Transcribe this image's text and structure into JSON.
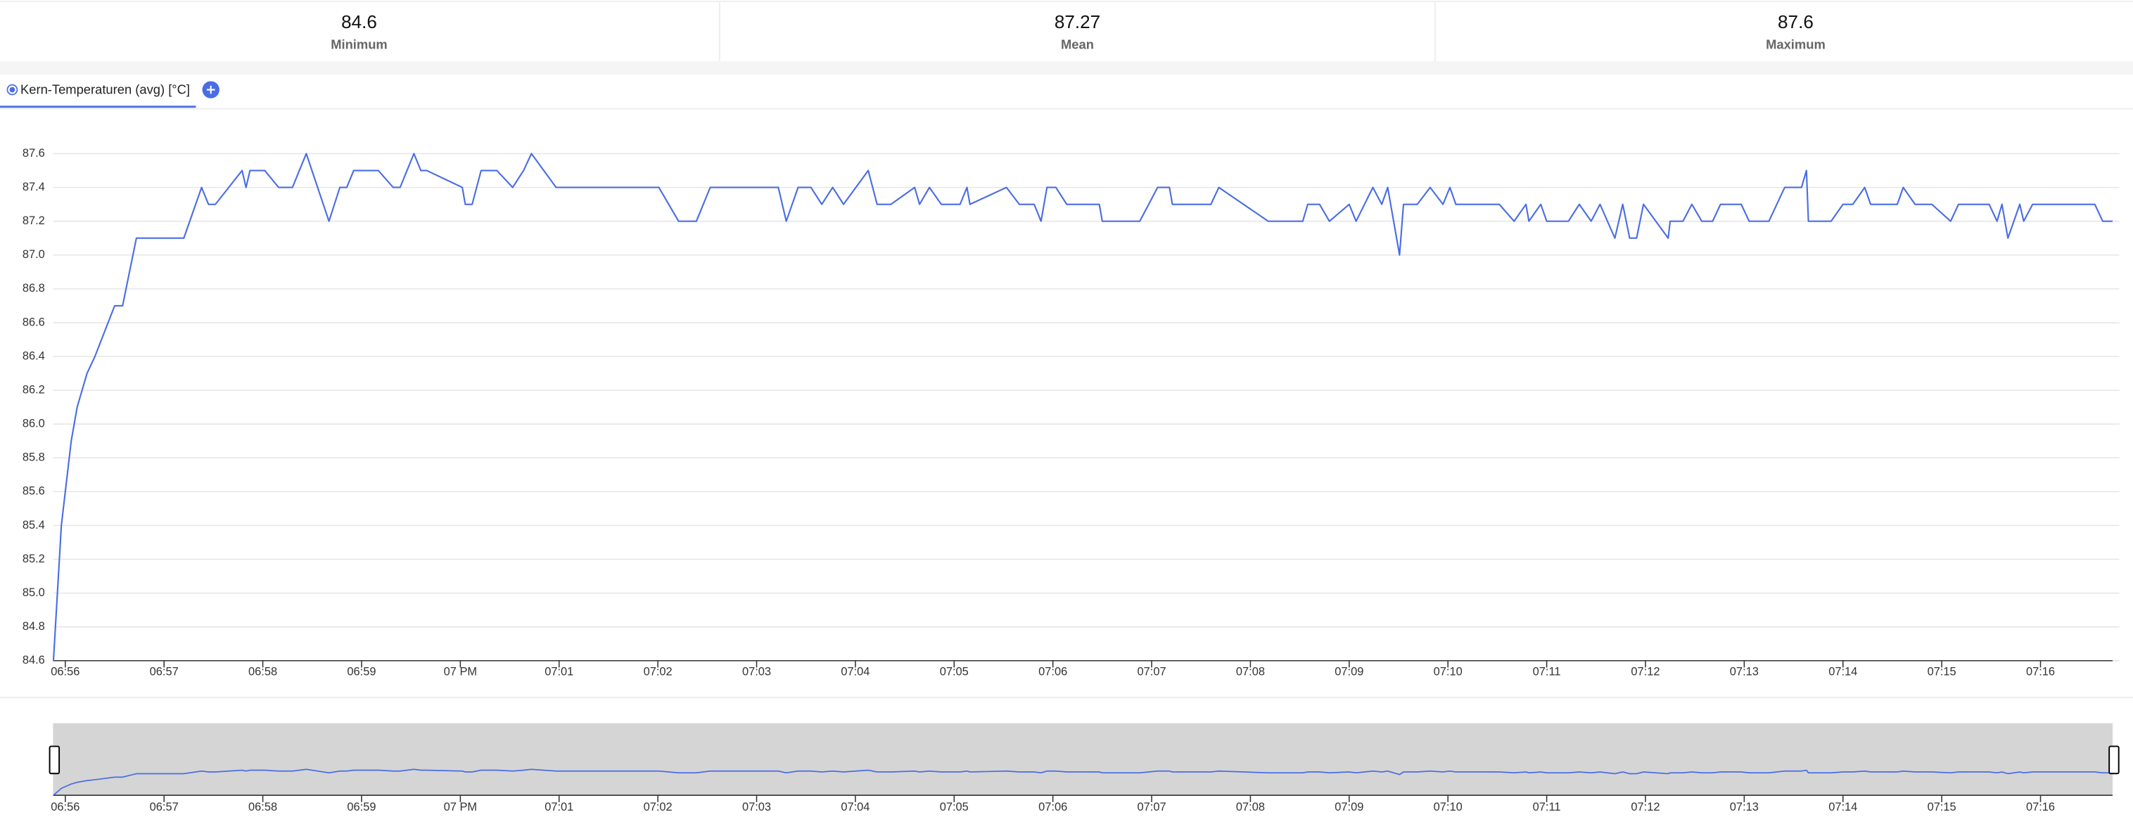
{
  "stats": [
    {
      "value": 84.6,
      "label": "Minimum"
    },
    {
      "value": 87.27,
      "label": "Mean"
    },
    {
      "value": 87.6,
      "label": "Maximum"
    }
  ],
  "chart_data": {
    "type": "line",
    "series": [
      {
        "name": "Kern-Temperaturen (avg) [°C]",
        "color": "#4a6de5",
        "x": [
          415.88,
          415.96,
          416.06,
          416.12,
          416.22,
          416.3,
          416.5,
          416.58,
          416.65,
          416.72,
          417.2,
          417.38,
          417.45,
          417.52,
          417.79,
          417.83,
          417.87,
          418.02,
          418.16,
          418.3,
          418.44,
          418.67,
          418.78,
          418.85,
          418.92,
          419.17,
          419.32,
          419.39,
          419.53,
          419.6,
          419.66,
          420.02,
          420.05,
          420.12,
          420.21,
          420.37,
          420.53,
          420.64,
          420.72,
          420.97,
          422.01,
          422.21,
          422.39,
          422.53,
          423.22,
          423.3,
          423.42,
          423.55,
          423.66,
          423.77,
          423.88,
          424.13,
          424.22,
          424.36,
          424.6,
          424.65,
          424.75,
          424.87,
          425.06,
          425.13,
          425.16,
          425.53,
          425.66,
          425.81,
          425.88,
          425.94,
          426.03,
          426.14,
          426.47,
          426.5,
          426.88,
          427.06,
          427.18,
          427.21,
          427.6,
          427.68,
          428.18,
          428.53,
          428.58,
          428.7,
          428.8,
          429.0,
          429.07,
          429.24,
          429.33,
          429.39,
          429.51,
          429.55,
          429.69,
          429.82,
          429.95,
          430.02,
          430.08,
          430.52,
          430.67,
          430.79,
          430.82,
          430.94,
          431.0,
          431.22,
          431.33,
          431.45,
          431.54,
          431.69,
          431.77,
          431.84,
          431.91,
          431.98,
          432.23,
          432.25,
          432.38,
          432.47,
          432.57,
          432.68,
          432.76,
          432.97,
          433.05,
          433.25,
          433.41,
          433.58,
          433.63,
          433.65,
          433.88,
          434.0,
          434.1,
          434.22,
          434.28,
          434.55,
          434.61,
          434.73,
          434.9,
          435.09,
          435.17,
          435.48,
          435.56,
          435.61,
          435.67,
          435.79,
          435.83,
          435.92,
          436.55,
          436.63,
          436.73
        ],
        "values": [
          84.6,
          85.4,
          85.9,
          86.1,
          86.3,
          86.4,
          86.7,
          86.7,
          86.9,
          87.1,
          87.1,
          87.4,
          87.3,
          87.3,
          87.5,
          87.4,
          87.5,
          87.5,
          87.4,
          87.4,
          87.6,
          87.2,
          87.4,
          87.4,
          87.5,
          87.5,
          87.4,
          87.4,
          87.6,
          87.5,
          87.5,
          87.4,
          87.3,
          87.3,
          87.5,
          87.5,
          87.4,
          87.5,
          87.6,
          87.4,
          87.4,
          87.2,
          87.2,
          87.4,
          87.4,
          87.2,
          87.4,
          87.4,
          87.3,
          87.4,
          87.3,
          87.5,
          87.3,
          87.3,
          87.4,
          87.3,
          87.4,
          87.3,
          87.3,
          87.4,
          87.3,
          87.4,
          87.3,
          87.3,
          87.2,
          87.4,
          87.4,
          87.3,
          87.3,
          87.2,
          87.2,
          87.4,
          87.4,
          87.3,
          87.3,
          87.4,
          87.2,
          87.2,
          87.3,
          87.3,
          87.2,
          87.3,
          87.2,
          87.4,
          87.3,
          87.4,
          87.0,
          87.3,
          87.3,
          87.4,
          87.3,
          87.4,
          87.3,
          87.3,
          87.2,
          87.3,
          87.2,
          87.3,
          87.2,
          87.2,
          87.3,
          87.2,
          87.3,
          87.1,
          87.3,
          87.1,
          87.1,
          87.3,
          87.1,
          87.2,
          87.2,
          87.3,
          87.2,
          87.2,
          87.3,
          87.3,
          87.2,
          87.2,
          87.4,
          87.4,
          87.5,
          87.2,
          87.2,
          87.3,
          87.3,
          87.4,
          87.3,
          87.3,
          87.4,
          87.3,
          87.3,
          87.2,
          87.3,
          87.3,
          87.2,
          87.3,
          87.1,
          87.3,
          87.2,
          87.3,
          87.3,
          87.2,
          87.2
        ]
      }
    ],
    "xlim": [
      415.876,
      436.73
    ],
    "xticks": [
      {
        "value": 416,
        "label": "06:56"
      },
      {
        "value": 417,
        "label": "06:57"
      },
      {
        "value": 418,
        "label": "06:58"
      },
      {
        "value": 419,
        "label": "06:59"
      },
      {
        "value": 420,
        "label": "07 PM"
      },
      {
        "value": 421,
        "label": "07:01"
      },
      {
        "value": 422,
        "label": "07:02"
      },
      {
        "value": 423,
        "label": "07:03"
      },
      {
        "value": 424,
        "label": "07:04"
      },
      {
        "value": 425,
        "label": "07:05"
      },
      {
        "value": 426,
        "label": "07:06"
      },
      {
        "value": 427,
        "label": "07:07"
      },
      {
        "value": 428,
        "label": "07:08"
      },
      {
        "value": 429,
        "label": "07:09"
      },
      {
        "value": 430,
        "label": "07:10"
      },
      {
        "value": 431,
        "label": "07:11"
      },
      {
        "value": 432,
        "label": "07:12"
      },
      {
        "value": 433,
        "label": "07:13"
      },
      {
        "value": 434,
        "label": "07:14"
      },
      {
        "value": 435,
        "label": "07:15"
      },
      {
        "value": 436,
        "label": "07:16"
      }
    ],
    "ylim": [
      84.6,
      87.6
    ],
    "yticks": [
      84.6,
      84.8,
      {
        "value": 85,
        "label": "85.0"
      },
      85.2,
      85.4,
      85.6,
      85.8,
      {
        "value": 86,
        "label": "86.0"
      },
      86.2,
      86.4,
      86.6,
      86.8,
      {
        "value": 87,
        "label": "87.0"
      },
      87.2,
      87.4,
      87.6
    ],
    "grid": true
  }
}
